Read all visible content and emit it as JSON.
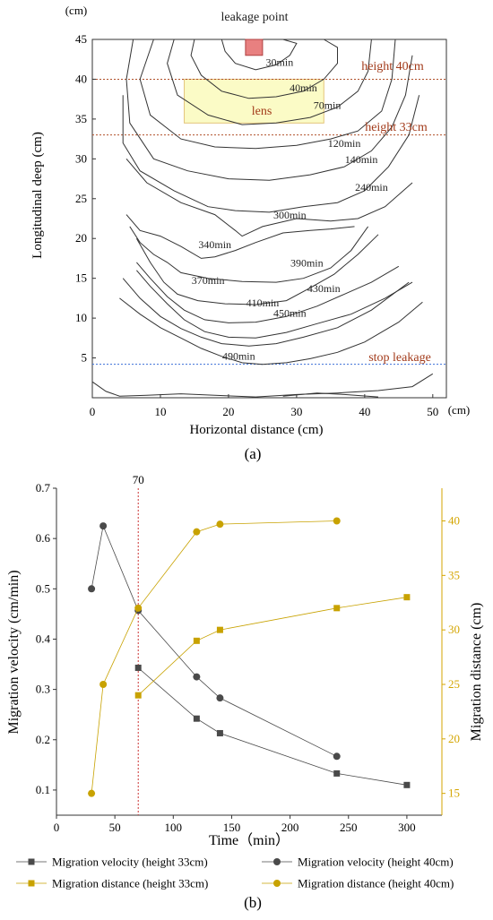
{
  "chart_data": [
    {
      "type": "contour",
      "panel_label": "(a)",
      "xlabel": "Horizontal distance (cm)",
      "ylabel": "Longitudinal deep (cm)",
      "x_unit": "(cm)",
      "y_unit": "(cm)",
      "xlim": [
        0,
        52
      ],
      "ylim": [
        0,
        45
      ],
      "xticks": [
        0,
        10,
        20,
        30,
        40,
        50
      ],
      "yticks": [
        5,
        10,
        15,
        20,
        25,
        30,
        35,
        40,
        45
      ],
      "annotations": {
        "leakage_point": "leakage point",
        "lens": "lens",
        "height40": "height 40cm",
        "height33": "height 33cm",
        "stop": "stop leakage"
      },
      "leak_source": {
        "x": [
          22.5,
          25
        ],
        "y": [
          43,
          45
        ]
      },
      "lens_region": {
        "x": [
          13.5,
          34
        ],
        "y": [
          34.5,
          40
        ]
      },
      "reference_lines": [
        {
          "label": "height 40cm",
          "y": 40
        },
        {
          "label": "height 33cm",
          "y": 33
        },
        {
          "label": "stop leakage",
          "y": 4.2
        }
      ],
      "contours": [
        {
          "label": "30min",
          "label_at": [
            27.5,
            41.7
          ],
          "x": [
            19,
            19.5,
            21,
            24,
            27,
            29,
            30,
            28
          ],
          "y": [
            45,
            43.5,
            42,
            41.2,
            41.8,
            43,
            44.5,
            45
          ]
        },
        {
          "label": "40min",
          "label_at": [
            31,
            38.5
          ],
          "x": [
            15,
            14.5,
            16,
            19,
            23,
            27,
            31,
            34,
            36,
            36,
            34
          ],
          "y": [
            45,
            43,
            40.5,
            38.5,
            37.6,
            37.8,
            38.5,
            40,
            42,
            44,
            45
          ]
        },
        {
          "label": "70min",
          "label_at": [
            34.5,
            36.3
          ],
          "x": [
            12,
            11,
            12.5,
            17,
            22,
            27,
            32,
            36,
            39,
            40.5,
            41
          ],
          "y": [
            45,
            42,
            38,
            35.5,
            34.3,
            34.5,
            35.2,
            36.5,
            38.5,
            41,
            45
          ]
        },
        {
          "label": "120min",
          "label_at": [
            37,
            31.5
          ],
          "x": [
            9,
            7,
            8.5,
            13,
            18,
            24,
            30,
            35,
            39,
            42.5,
            44,
            44.5
          ],
          "y": [
            45,
            40,
            35.5,
            32.5,
            31.5,
            31.3,
            31.7,
            32.5,
            33.5,
            36,
            40,
            45
          ]
        },
        {
          "label": "140min",
          "label_at": [
            39.5,
            29.5
          ],
          "x": [
            6,
            5,
            5.5,
            9,
            14,
            20,
            26,
            32,
            37,
            41,
            44,
            46,
            47
          ],
          "y": [
            45,
            40,
            34.5,
            30,
            28.5,
            27.5,
            27.3,
            28,
            29,
            31,
            34,
            38,
            43
          ]
        },
        {
          "label": "240min",
          "label_at": [
            41,
            26
          ],
          "x": [
            4.5,
            4.5,
            7,
            12,
            17,
            21,
            26,
            31,
            36,
            40,
            43.5,
            46.5,
            48
          ],
          "y": [
            38,
            32,
            28.5,
            26,
            24,
            23.5,
            23.3,
            24,
            24.5,
            26,
            29,
            33,
            38
          ]
        },
        {
          "label": "300min",
          "label_at": [
            29,
            22.5
          ],
          "x": [
            5,
            8,
            13,
            18,
            21,
            22,
            25,
            30,
            35,
            39,
            43,
            47
          ],
          "y": [
            30,
            27,
            24.5,
            23,
            21,
            20.3,
            21.5,
            22.5,
            22.2,
            22.5,
            24,
            27
          ]
        },
        {
          "label": "340min",
          "label_at": [
            18,
            18.8
          ],
          "x": [
            5,
            7,
            10,
            13,
            16,
            18,
            21,
            24,
            28,
            32,
            35,
            38.5
          ],
          "y": [
            23,
            21,
            20.3,
            19,
            17.5,
            17.7,
            18.5,
            19.5,
            20.7,
            21,
            21.2,
            21.5
          ]
        },
        {
          "label": "370min",
          "label_at": [
            17,
            14.3
          ],
          "x": [
            5.5,
            7,
            9,
            11,
            13,
            17,
            22,
            27,
            31,
            35,
            38,
            40.5
          ],
          "y": [
            21.5,
            19.5,
            18,
            17,
            15.7,
            15,
            14.6,
            14.5,
            15,
            16.3,
            18.5,
            21.5
          ]
        },
        {
          "label": "390min",
          "label_at": [
            31.5,
            16.5
          ],
          "x": [
            6.5,
            8.5,
            10.5,
            12.5,
            15.5,
            19.5,
            24,
            28.5,
            32,
            35.5,
            39,
            42
          ],
          "y": [
            20,
            17,
            14.5,
            13,
            12.2,
            11.8,
            11.7,
            12.2,
            13.8,
            15.5,
            18,
            20.5
          ]
        },
        {
          "label": "410min",
          "label_at": [
            25,
            11.5
          ],
          "x": [
            6.5,
            8.5,
            11,
            13.5,
            16.5,
            20,
            24,
            28.5,
            33,
            37,
            41,
            45
          ],
          "y": [
            17,
            15,
            12.7,
            11,
            9.8,
            9.4,
            9.5,
            10.2,
            11.5,
            13,
            14.5,
            16.5
          ]
        },
        {
          "label": "430min",
          "label_at": [
            34,
            13.3
          ],
          "x": [
            6.5,
            8.5,
            11,
            13.5,
            16.5,
            20,
            24,
            28.5,
            33,
            38,
            43,
            47
          ],
          "y": [
            16,
            14,
            11.8,
            9.8,
            8.3,
            7.6,
            7.5,
            8.2,
            9.3,
            10.5,
            12.5,
            14.5
          ]
        },
        {
          "label": "450min",
          "label_at": [
            29,
            10.2
          ],
          "x": [
            4.5,
            7,
            10,
            13,
            16,
            19,
            23,
            27,
            31,
            36,
            41,
            46.5
          ],
          "y": [
            15,
            12.5,
            10.2,
            8.7,
            7.6,
            6.8,
            6.5,
            6.8,
            7.6,
            8.8,
            11,
            14.5
          ]
        },
        {
          "label": "490min",
          "label_at": [
            21.5,
            4.8
          ],
          "x": [
            4,
            7,
            10,
            13,
            16,
            19,
            22,
            25,
            28.5,
            32,
            36,
            40,
            45,
            48.5
          ],
          "y": [
            12.5,
            10.5,
            8.8,
            7.5,
            6.2,
            5.2,
            4.4,
            4.2,
            4.4,
            4.9,
            5.7,
            7,
            9.5,
            12
          ]
        },
        {
          "label": "",
          "label_at": null,
          "x": [
            0,
            2,
            4,
            8,
            13,
            18,
            24,
            30,
            36,
            42,
            47,
            50
          ],
          "y": [
            2,
            0.8,
            0.2,
            0.3,
            0.5,
            0.3,
            0.1,
            0.4,
            0.6,
            0.9,
            1.4,
            3
          ]
        },
        {
          "label": "",
          "label_at": null,
          "x": [
            28,
            33,
            37,
            42
          ],
          "y": [
            0.2,
            0.6,
            0.4,
            0.1
          ]
        }
      ]
    },
    {
      "type": "line",
      "panel_label": "(b)",
      "xlabel": "Time（min）",
      "ylabel": "Migration velocity (cm/min)",
      "ylabel_right": "Migration distance (cm)",
      "xlim": [
        0,
        330
      ],
      "ylim": [
        0.05,
        0.7
      ],
      "ylim_right": [
        13,
        43
      ],
      "xticks": [
        0,
        50,
        100,
        150,
        200,
        250,
        300
      ],
      "yticks": [
        0.1,
        0.2,
        0.3,
        0.4,
        0.5,
        0.6,
        0.7
      ],
      "yticks_right": [
        15,
        20,
        25,
        30,
        35,
        40
      ],
      "vline": {
        "x": 70,
        "label": "70"
      },
      "legend_position": "bottom",
      "colors": {
        "velocity": "#4a4a4a",
        "distance": "#c8a200",
        "vline": "#cc3333",
        "axis_right": "#d4a500"
      },
      "series": [
        {
          "name": "Migration velocity (height 33cm)",
          "axis": "left",
          "marker": "square",
          "color": "#4a4a4a",
          "x": [
            70,
            120,
            140,
            240,
            300
          ],
          "y": [
            0.343,
            0.242,
            0.213,
            0.133,
            0.11
          ]
        },
        {
          "name": "Migration velocity (height 40cm)",
          "axis": "left",
          "marker": "circle",
          "color": "#4a4a4a",
          "x": [
            30,
            40,
            70,
            120,
            140,
            240
          ],
          "y": [
            0.5,
            0.625,
            0.457,
            0.325,
            0.283,
            0.167
          ]
        },
        {
          "name": "Migration distance (height 33cm)",
          "axis": "right",
          "marker": "square",
          "color": "#c8a200",
          "x": [
            70,
            120,
            140,
            240,
            300
          ],
          "y": [
            24,
            29,
            30,
            32,
            33
          ]
        },
        {
          "name": "Migration distance (height 40cm)",
          "axis": "right",
          "marker": "circle",
          "color": "#c8a200",
          "x": [
            30,
            40,
            70,
            120,
            140,
            240
          ],
          "y": [
            15,
            25,
            32,
            39,
            39.7,
            40
          ]
        }
      ]
    }
  ]
}
